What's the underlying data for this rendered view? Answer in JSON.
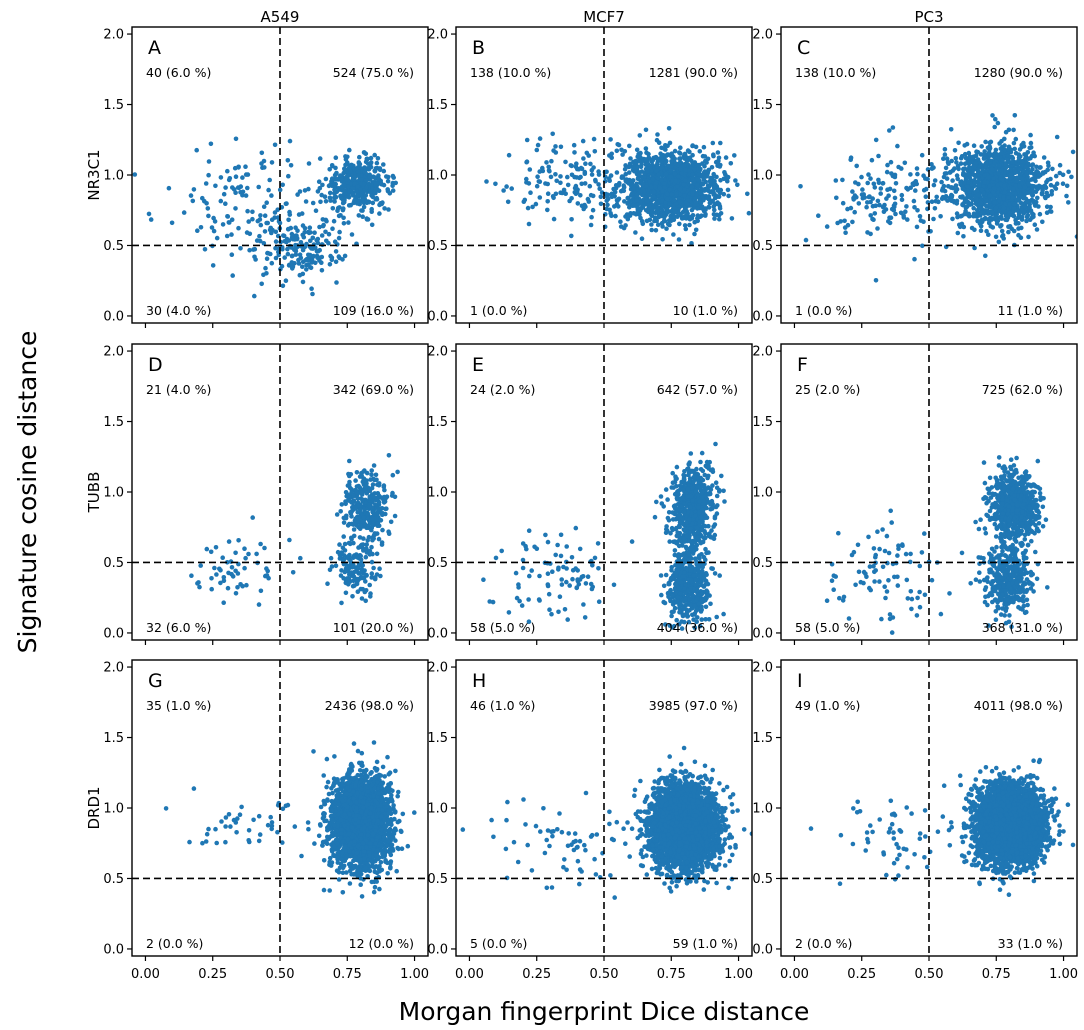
{
  "figure": {
    "xlabel": "Morgan fingerprint Dice distance",
    "ylabel": "Signature cosine distance",
    "columns": [
      "A549",
      "MCF7",
      "PC3"
    ],
    "rows": [
      "NR3C1",
      "TUBB",
      "DRD1"
    ],
    "point_color": "#1f77b4"
  },
  "chart_data": [
    {
      "type": "scatter",
      "panel": "A",
      "cell_line": "A549",
      "target": "NR3C1",
      "xlim": [
        -0.05,
        1.05
      ],
      "ylim": [
        -0.05,
        2.05
      ],
      "xticks": [
        "0.00",
        "0.25",
        "0.50",
        "0.75",
        "1.00"
      ],
      "yticks": [
        "0.0",
        "0.5",
        "1.0",
        "1.5",
        "2.0"
      ],
      "thresholds": {
        "x": 0.5,
        "y": 0.5
      },
      "quadrants": {
        "top_left": "40 (6.0 %)",
        "top_right": "524 (75.0 %)",
        "bottom_left": "30 (4.0 %)",
        "bottom_right": "109 (16.0 %)"
      },
      "points": {
        "n": 703,
        "clusters": [
          {
            "cx": 0.79,
            "cy": 0.93,
            "sx": 0.06,
            "sy": 0.09,
            "n": 390
          },
          {
            "cx": 0.58,
            "cy": 0.48,
            "sx": 0.08,
            "sy": 0.11,
            "n": 170
          },
          {
            "cx": 0.4,
            "cy": 0.8,
            "sx": 0.15,
            "sy": 0.22,
            "n": 143
          }
        ]
      }
    },
    {
      "type": "scatter",
      "panel": "B",
      "cell_line": "MCF7",
      "target": "NR3C1",
      "xlim": [
        -0.05,
        1.05
      ],
      "ylim": [
        -0.05,
        2.05
      ],
      "xticks": [
        "0.00",
        "0.25",
        "0.50",
        "0.75",
        "1.00"
      ],
      "yticks": [
        "0.0",
        "0.5",
        "1.0",
        "1.5",
        "2.0"
      ],
      "thresholds": {
        "x": 0.5,
        "y": 0.5
      },
      "quadrants": {
        "top_left": "138 (10.0 %)",
        "top_right": "1281 (90.0 %)",
        "bottom_left": "1 (0.0 %)",
        "bottom_right": "10 (1.0 %)"
      },
      "points": {
        "n": 1430,
        "clusters": [
          {
            "cx": 0.75,
            "cy": 0.91,
            "sx": 0.09,
            "sy": 0.13,
            "n": 1280
          },
          {
            "cx": 0.38,
            "cy": 0.95,
            "sx": 0.13,
            "sy": 0.14,
            "n": 150
          }
        ]
      }
    },
    {
      "type": "scatter",
      "panel": "C",
      "cell_line": "PC3",
      "target": "NR3C1",
      "xlim": [
        -0.05,
        1.05
      ],
      "ylim": [
        -0.05,
        2.05
      ],
      "xticks": [
        "0.00",
        "0.25",
        "0.50",
        "0.75",
        "1.00"
      ],
      "yticks": [
        "0.0",
        "0.5",
        "1.0",
        "1.5",
        "2.0"
      ],
      "thresholds": {
        "x": 0.5,
        "y": 0.5
      },
      "quadrants": {
        "top_left": "138 (10.0 %)",
        "top_right": "1280 (90.0 %)",
        "bottom_left": "1 (0.0 %)",
        "bottom_right": "11 (1.0 %)"
      },
      "points": {
        "n": 1430,
        "clusters": [
          {
            "cx": 0.76,
            "cy": 0.92,
            "sx": 0.09,
            "sy": 0.15,
            "n": 1280
          },
          {
            "cx": 0.35,
            "cy": 0.85,
            "sx": 0.12,
            "sy": 0.16,
            "n": 150
          }
        ]
      }
    },
    {
      "type": "scatter",
      "panel": "D",
      "cell_line": "A549",
      "target": "TUBB",
      "xlim": [
        -0.05,
        1.05
      ],
      "ylim": [
        -0.05,
        2.05
      ],
      "xticks": [
        "0.00",
        "0.25",
        "0.50",
        "0.75",
        "1.00"
      ],
      "yticks": [
        "0.0",
        "0.5",
        "1.0",
        "1.5",
        "2.0"
      ],
      "thresholds": {
        "x": 0.5,
        "y": 0.5
      },
      "quadrants": {
        "top_left": "21 (4.0 %)",
        "top_right": "342 (69.0 %)",
        "bottom_left": "32 (6.0 %)",
        "bottom_right": "101 (20.0 %)"
      },
      "points": {
        "n": 496,
        "clusters": [
          {
            "cx": 0.82,
            "cy": 0.9,
            "sx": 0.04,
            "sy": 0.13,
            "n": 300
          },
          {
            "cx": 0.78,
            "cy": 0.48,
            "sx": 0.04,
            "sy": 0.1,
            "n": 140
          },
          {
            "cx": 0.33,
            "cy": 0.47,
            "sx": 0.11,
            "sy": 0.12,
            "n": 56
          }
        ]
      }
    },
    {
      "type": "scatter",
      "panel": "E",
      "cell_line": "MCF7",
      "target": "TUBB",
      "xlim": [
        -0.05,
        1.05
      ],
      "ylim": [
        -0.05,
        2.05
      ],
      "xticks": [
        "0.00",
        "0.25",
        "0.50",
        "0.75",
        "1.00"
      ],
      "yticks": [
        "0.0",
        "0.5",
        "1.0",
        "1.5",
        "2.0"
      ],
      "thresholds": {
        "x": 0.5,
        "y": 0.5
      },
      "quadrants": {
        "top_left": "24 (2.0 %)",
        "top_right": "642 (57.0 %)",
        "bottom_left": "58 (5.0 %)",
        "bottom_right": "404 (36.0 %)"
      },
      "points": {
        "n": 1128,
        "clusters": [
          {
            "cx": 0.83,
            "cy": 0.88,
            "sx": 0.04,
            "sy": 0.16,
            "n": 620
          },
          {
            "cx": 0.81,
            "cy": 0.32,
            "sx": 0.04,
            "sy": 0.12,
            "n": 420
          },
          {
            "cx": 0.33,
            "cy": 0.38,
            "sx": 0.11,
            "sy": 0.15,
            "n": 88
          }
        ]
      }
    },
    {
      "type": "scatter",
      "panel": "F",
      "cell_line": "PC3",
      "target": "TUBB",
      "xlim": [
        -0.05,
        1.05
      ],
      "ylim": [
        -0.05,
        2.05
      ],
      "xticks": [
        "0.00",
        "0.25",
        "0.50",
        "0.75",
        "1.00"
      ],
      "yticks": [
        "0.0",
        "0.5",
        "1.0",
        "1.5",
        "2.0"
      ],
      "thresholds": {
        "x": 0.5,
        "y": 0.5
      },
      "quadrants": {
        "top_left": "25 (2.0 %)",
        "top_right": "725 (62.0 %)",
        "bottom_left": "58 (5.0 %)",
        "bottom_right": "368 (31.0 %)"
      },
      "points": {
        "n": 1176,
        "clusters": [
          {
            "cx": 0.82,
            "cy": 0.9,
            "sx": 0.045,
            "sy": 0.12,
            "n": 700
          },
          {
            "cx": 0.79,
            "cy": 0.38,
            "sx": 0.04,
            "sy": 0.13,
            "n": 390
          },
          {
            "cx": 0.33,
            "cy": 0.42,
            "sx": 0.11,
            "sy": 0.17,
            "n": 86
          }
        ]
      }
    },
    {
      "type": "scatter",
      "panel": "G",
      "cell_line": "A549",
      "target": "DRD1",
      "xlim": [
        -0.05,
        1.05
      ],
      "ylim": [
        -0.05,
        2.05
      ],
      "xticks": [
        "0.00",
        "0.25",
        "0.50",
        "0.75",
        "1.00"
      ],
      "yticks": [
        "0.0",
        "0.5",
        "1.0",
        "1.5",
        "2.0"
      ],
      "thresholds": {
        "x": 0.5,
        "y": 0.5
      },
      "quadrants": {
        "top_left": "35 (1.0 %)",
        "top_right": "2436 (98.0 %)",
        "bottom_left": "2 (0.0 %)",
        "bottom_right": "12 (0.0 %)"
      },
      "points": {
        "n": 2485,
        "clusters": [
          {
            "cx": 0.8,
            "cy": 0.9,
            "sx": 0.055,
            "sy": 0.16,
            "n": 2440
          },
          {
            "cx": 0.36,
            "cy": 0.88,
            "sx": 0.12,
            "sy": 0.1,
            "n": 45
          }
        ]
      }
    },
    {
      "type": "scatter",
      "panel": "H",
      "cell_line": "MCF7",
      "target": "DRD1",
      "xlim": [
        -0.05,
        1.05
      ],
      "ylim": [
        -0.05,
        2.05
      ],
      "xticks": [
        "0.00",
        "0.25",
        "0.50",
        "0.75",
        "1.00"
      ],
      "yticks": [
        "0.0",
        "0.5",
        "1.0",
        "1.5",
        "2.0"
      ],
      "thresholds": {
        "x": 0.5,
        "y": 0.5
      },
      "quadrants": {
        "top_left": "46 (1.0 %)",
        "top_right": "3985 (97.0 %)",
        "bottom_left": "5 (0.0 %)",
        "bottom_right": "59 (1.0 %)"
      },
      "points": {
        "n": 4095,
        "clusters": [
          {
            "cx": 0.8,
            "cy": 0.87,
            "sx": 0.06,
            "sy": 0.14,
            "n": 4030
          },
          {
            "cx": 0.38,
            "cy": 0.78,
            "sx": 0.12,
            "sy": 0.15,
            "n": 65
          }
        ]
      }
    },
    {
      "type": "scatter",
      "panel": "I",
      "cell_line": "PC3",
      "target": "DRD1",
      "xlim": [
        -0.05,
        1.05
      ],
      "ylim": [
        -0.05,
        2.05
      ],
      "xticks": [
        "0.00",
        "0.25",
        "0.50",
        "0.75",
        "1.00"
      ],
      "yticks": [
        "0.0",
        "0.5",
        "1.0",
        "1.5",
        "2.0"
      ],
      "thresholds": {
        "x": 0.5,
        "y": 0.5
      },
      "quadrants": {
        "top_left": "49 (1.0 %)",
        "top_right": "4011 (98.0 %)",
        "bottom_left": "2 (0.0 %)",
        "bottom_right": "33 (1.0 %)"
      },
      "points": {
        "n": 4095,
        "clusters": [
          {
            "cx": 0.8,
            "cy": 0.88,
            "sx": 0.06,
            "sy": 0.13,
            "n": 4040
          },
          {
            "cx": 0.37,
            "cy": 0.8,
            "sx": 0.12,
            "sy": 0.15,
            "n": 55
          }
        ]
      }
    }
  ]
}
